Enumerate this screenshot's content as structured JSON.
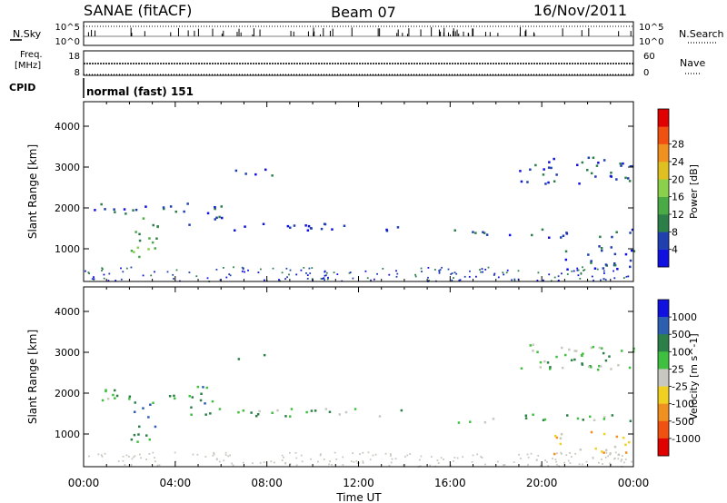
{
  "header": {
    "station": "SANAE (fitACF)",
    "beam": "Beam 07",
    "date": "16/Nov/2011"
  },
  "noise_panel": {
    "left_label": "N.Sky",
    "right_label": "N.Search",
    "left_ticks": [
      "10^5",
      "10^0"
    ],
    "right_ticks": [
      "10^5",
      "10^0"
    ]
  },
  "freq_panel": {
    "left_label_1": "Freq.",
    "left_label_2": "[MHz]",
    "right_label": "Nave",
    "left_ticks": [
      "18",
      "8"
    ],
    "right_ticks": [
      "60",
      "0"
    ]
  },
  "cpid": {
    "label": "CPID",
    "value": "normal (fast) 151"
  },
  "time_axis": {
    "label": "Time UT",
    "ticks": [
      "00:00",
      "04:00",
      "08:00",
      "12:00",
      "16:00",
      "20:00",
      "00:00"
    ]
  },
  "chart_data": [
    {
      "type": "heatmap",
      "name": "power",
      "ylabel": "Slant Range [km]",
      "y_ticks": [
        "1000",
        "2000",
        "3000",
        "4000"
      ],
      "ylim": [
        200,
        4600
      ],
      "xlim_hours": [
        0,
        24
      ],
      "colorbar_label": "Power [dB]",
      "colorbar_ticks": [
        "4",
        "8",
        "12",
        "16",
        "20",
        "24",
        "28"
      ],
      "colorbar_colors": [
        "#1010e0",
        "#2040b0",
        "#2d7f4a",
        "#4aaa46",
        "#8ad04a",
        "#e0c020",
        "#f09020",
        "#f05010",
        "#e00000"
      ],
      "echo_regions": [
        {
          "t": [
            0.3,
            4.8
          ],
          "r": [
            1850,
            2150
          ],
          "level": "8"
        },
        {
          "t": [
            2.0,
            3.2
          ],
          "r": [
            700,
            1800
          ],
          "level": "16"
        },
        {
          "t": [
            4.5,
            6.0
          ],
          "r": [
            1500,
            2200
          ],
          "level": "8"
        },
        {
          "t": [
            6.5,
            8.5
          ],
          "r": [
            2800,
            3000
          ],
          "level": "8"
        },
        {
          "t": [
            6.0,
            14.0
          ],
          "r": [
            1450,
            1650
          ],
          "level": "4"
        },
        {
          "t": [
            16.0,
            24.0
          ],
          "r": [
            1300,
            1500
          ],
          "level": "8"
        },
        {
          "t": [
            19.0,
            24.0
          ],
          "r": [
            2600,
            3300
          ],
          "level": "8"
        },
        {
          "t": [
            20.5,
            24.0
          ],
          "r": [
            500,
            1100
          ],
          "level": "8"
        }
      ]
    },
    {
      "type": "heatmap",
      "name": "velocity",
      "ylabel": "Slant Range [km]",
      "y_ticks": [
        "1000",
        "2000",
        "3000",
        "4000"
      ],
      "ylim": [
        200,
        4600
      ],
      "xlim_hours": [
        0,
        24
      ],
      "colorbar_label": "Velocity [m s^-1]",
      "colorbar_ticks": [
        "1000",
        "500",
        "100",
        "25",
        "-25",
        "-100",
        "-500",
        "-1000"
      ],
      "colorbar_colors": [
        "#1010e0",
        "#2d5fb0",
        "#2d7f4a",
        "#40c040",
        "#c8c8c0",
        "#f0d020",
        "#f09020",
        "#f05010",
        "#e00000"
      ],
      "echo_regions": [
        {
          "t": [
            0.3,
            4.8
          ],
          "r": [
            1850,
            2150
          ],
          "level": "25"
        },
        {
          "t": [
            2.0,
            3.2
          ],
          "r": [
            700,
            1800
          ],
          "level": "100"
        },
        {
          "t": [
            4.5,
            6.0
          ],
          "r": [
            1500,
            2200
          ],
          "level": "100"
        },
        {
          "t": [
            6.5,
            8.5
          ],
          "r": [
            2800,
            3000
          ],
          "level": "25"
        },
        {
          "t": [
            6.0,
            14.0
          ],
          "r": [
            1450,
            1650
          ],
          "level": "25"
        },
        {
          "t": [
            16.0,
            24.0
          ],
          "r": [
            1300,
            1500
          ],
          "level": "25"
        },
        {
          "t": [
            19.0,
            24.0
          ],
          "r": [
            2600,
            3300
          ],
          "level": "25"
        },
        {
          "t": [
            20.5,
            24.0
          ],
          "r": [
            500,
            1100
          ],
          "level": "-100"
        }
      ]
    }
  ]
}
